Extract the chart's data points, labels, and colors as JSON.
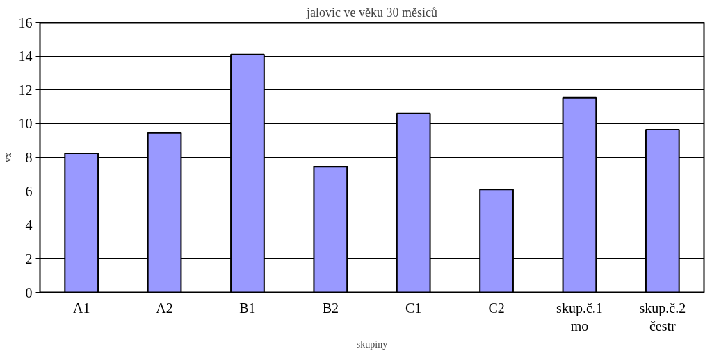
{
  "chart_data": {
    "type": "bar",
    "title": "jalovic ve věku 30 měsíců",
    "xlabel": "skupiny",
    "ylabel": "vx",
    "categories": [
      "A1",
      "A2",
      "B1",
      "B2",
      "C1",
      "C2",
      "skup.č.1\nmo",
      "skup.č.2\nčestr"
    ],
    "values": [
      8.25,
      9.45,
      14.1,
      7.45,
      10.6,
      6.1,
      11.55,
      9.65
    ],
    "color": "#9999ff",
    "ylim": [
      0,
      16
    ],
    "yticks": [
      0,
      2,
      4,
      6,
      8,
      10,
      12,
      14,
      16
    ],
    "grid": "y"
  }
}
